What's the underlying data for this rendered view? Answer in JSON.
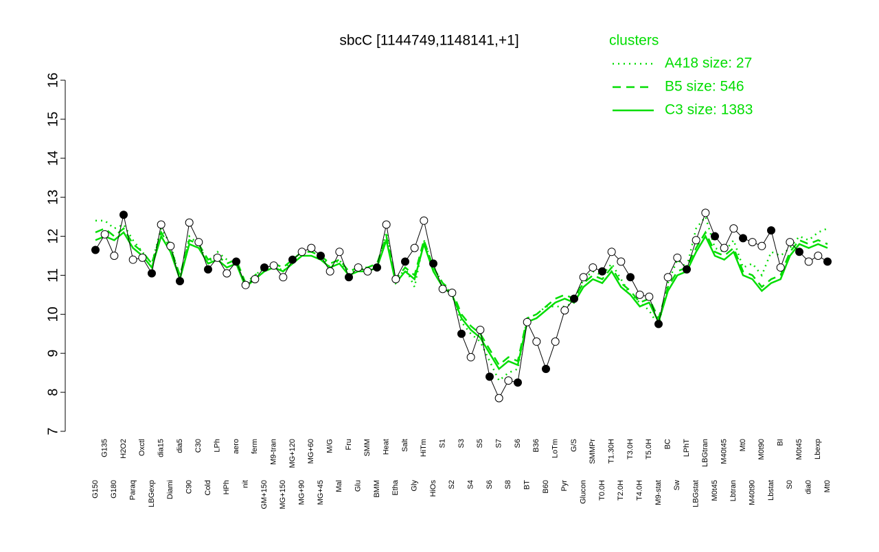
{
  "chart_data": {
    "type": "line",
    "title": "sbcC [1144749,1148141,+1]",
    "legend_title": "clusters",
    "legend": "top-right",
    "ylim": [
      7,
      16
    ],
    "yticks": [
      7,
      8,
      9,
      10,
      11,
      12,
      13,
      14,
      15,
      16
    ],
    "color": "#000000",
    "categories": [
      "G150",
      "G135",
      "G180",
      "H2O2",
      "Paraq",
      "Oxctl",
      "LBGexp",
      "dia15",
      "Diami",
      "dia5",
      "C90",
      "C30",
      "Cold",
      "LPh",
      "HPh",
      "aero",
      "nit",
      "ferm",
      "GM+150",
      "M9-tran",
      "MG+150",
      "MG+120",
      "MG+90",
      "MG+60",
      "MG+45",
      "M/G",
      "Mal",
      "Fru",
      "Glu",
      "SMM",
      "BMM",
      "Heat",
      "Etha",
      "Salt",
      "Gly",
      "HiTm",
      "HiOs",
      "S1",
      "S2",
      "S3",
      "S4",
      "S5",
      "S6",
      "S7",
      "S8",
      "S6",
      "BT",
      "B36",
      "B60",
      "LoTm",
      "Pyr",
      "G/S",
      "Glucon",
      "SMMPr",
      "T0.0H",
      "T1.30H",
      "T2.0H",
      "T3.0H",
      "T4.0H",
      "T5.0H",
      "M9-stat",
      "BC",
      "Sw",
      "LPhT",
      "LBGstat",
      "LBGtran",
      "M0t45",
      "M40t45",
      "Lbtran",
      "Mt0",
      "M40t90",
      "M0t90",
      "Lbstat",
      "BI",
      "S0",
      "M0t45",
      "dia0",
      "Lbexp",
      "Mt0"
    ],
    "values": [
      11.65,
      12.05,
      11.5,
      12.55,
      11.4,
      11.45,
      11.05,
      12.3,
      11.75,
      10.85,
      12.35,
      11.85,
      11.15,
      11.45,
      11.05,
      11.35,
      10.75,
      10.9,
      11.2,
      11.25,
      10.95,
      11.4,
      11.6,
      11.7,
      11.5,
      11.1,
      11.6,
      10.95,
      11.2,
      11.1,
      11.2,
      12.3,
      10.9,
      11.35,
      11.7,
      12.4,
      11.3,
      10.65,
      10.55,
      9.5,
      8.9,
      9.6,
      8.4,
      7.85,
      8.3,
      8.25,
      9.8,
      9.3,
      8.6,
      9.3,
      10.1,
      10.4,
      10.95,
      11.2,
      11.1,
      11.6,
      11.35,
      10.95,
      10.5,
      10.45,
      9.75,
      10.95,
      11.45,
      11.15,
      11.9,
      12.6,
      12.0,
      11.7,
      12.2,
      11.95,
      11.85,
      11.75,
      12.15,
      11.2,
      11.85,
      11.6,
      11.35,
      11.5,
      11.35
    ],
    "series": [
      {
        "name": "A418 size: 27",
        "color": "#00dd00",
        "style": "dotted",
        "values": [
          12.4,
          12.4,
          12.2,
          12.3,
          11.9,
          11.6,
          11.3,
          12.2,
          11.8,
          10.9,
          12.0,
          11.8,
          11.3,
          11.6,
          11.4,
          11.3,
          10.7,
          11.0,
          11.2,
          11.3,
          11.1,
          11.4,
          11.6,
          11.7,
          11.5,
          11.2,
          11.4,
          11.0,
          11.2,
          11.1,
          11.2,
          12.1,
          10.8,
          11.2,
          10.7,
          11.9,
          11.2,
          10.8,
          10.5,
          9.8,
          9.5,
          9.3,
          8.8,
          8.3,
          8.5,
          8.6,
          9.9,
          10.0,
          10.2,
          10.2,
          10.2,
          10.3,
          10.9,
          11.1,
          11.0,
          11.3,
          10.9,
          10.5,
          10.3,
          10.1,
          9.7,
          10.8,
          11.4,
          11.2,
          12.2,
          12.5,
          11.7,
          11.6,
          11.9,
          11.2,
          11.3,
          11.0,
          11.6,
          11.5,
          11.7,
          12.0,
          11.9,
          12.1,
          12.2
        ]
      },
      {
        "name": "B5 size: 546",
        "color": "#00dd00",
        "style": "dashed",
        "values": [
          12.1,
          12.2,
          12.0,
          12.2,
          11.8,
          11.6,
          11.3,
          12.1,
          11.7,
          11.0,
          11.9,
          11.8,
          11.4,
          11.5,
          11.3,
          11.4,
          10.8,
          11.0,
          11.2,
          11.3,
          11.2,
          11.4,
          11.6,
          11.6,
          11.5,
          11.3,
          11.4,
          11.1,
          11.2,
          11.2,
          11.3,
          12.0,
          10.9,
          11.2,
          11.0,
          11.9,
          11.2,
          10.8,
          10.6,
          10.0,
          9.7,
          9.5,
          9.1,
          8.7,
          8.9,
          8.8,
          9.9,
          10.0,
          10.2,
          10.4,
          10.5,
          10.4,
          10.8,
          11.0,
          10.9,
          11.2,
          10.8,
          10.6,
          10.3,
          10.4,
          9.9,
          10.7,
          11.1,
          11.2,
          11.7,
          12.1,
          11.6,
          11.5,
          11.7,
          11.1,
          11.0,
          10.7,
          10.9,
          11.0,
          11.6,
          11.9,
          11.8,
          11.9,
          11.8
        ]
      },
      {
        "name": "C3 size: 1383",
        "color": "#00dd00",
        "style": "solid",
        "values": [
          11.9,
          12.0,
          11.9,
          12.1,
          11.7,
          11.5,
          11.2,
          12.0,
          11.6,
          10.9,
          11.8,
          11.7,
          11.3,
          11.4,
          11.2,
          11.3,
          10.7,
          10.9,
          11.1,
          11.2,
          11.1,
          11.3,
          11.5,
          11.5,
          11.4,
          11.2,
          11.3,
          11.0,
          11.1,
          11.1,
          11.2,
          11.9,
          10.8,
          11.1,
          10.9,
          11.8,
          11.1,
          10.7,
          10.5,
          9.9,
          9.6,
          9.4,
          9.0,
          8.6,
          8.8,
          8.7,
          9.8,
          9.9,
          10.1,
          10.3,
          10.4,
          10.3,
          10.7,
          10.9,
          10.8,
          11.1,
          10.7,
          10.5,
          10.2,
          10.3,
          9.8,
          10.6,
          11.0,
          11.1,
          11.6,
          12.0,
          11.5,
          11.4,
          11.6,
          11.0,
          10.9,
          10.6,
          10.8,
          10.9,
          11.5,
          11.8,
          11.7,
          11.8,
          11.7
        ]
      }
    ]
  }
}
